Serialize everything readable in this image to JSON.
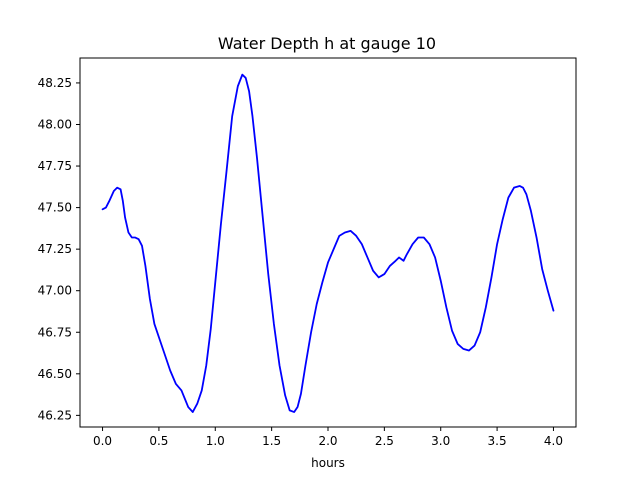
{
  "chart_data": {
    "type": "line",
    "title": "Water Depth h at gauge 10",
    "xlabel": "hours",
    "ylabel": "",
    "xlim": [
      -0.2,
      4.2
    ],
    "ylim": [
      46.18,
      48.4
    ],
    "xticks": [
      0.0,
      0.5,
      1.0,
      1.5,
      2.0,
      2.5,
      3.0,
      3.5,
      4.0
    ],
    "xtick_labels": [
      "0.0",
      "0.5",
      "1.0",
      "1.5",
      "2.0",
      "2.5",
      "3.0",
      "3.5",
      "4.0"
    ],
    "yticks": [
      46.25,
      46.5,
      46.75,
      47.0,
      47.25,
      47.5,
      47.75,
      48.0,
      48.25
    ],
    "ytick_labels": [
      "46.25",
      "46.50",
      "46.75",
      "47.00",
      "47.25",
      "47.50",
      "47.75",
      "48.00",
      "48.25"
    ],
    "grid": false,
    "series": [
      {
        "color": "#0000ff",
        "x": [
          0.0,
          0.03,
          0.06,
          0.1,
          0.13,
          0.16,
          0.18,
          0.2,
          0.23,
          0.26,
          0.29,
          0.32,
          0.35,
          0.38,
          0.42,
          0.46,
          0.5,
          0.55,
          0.6,
          0.65,
          0.7,
          0.73,
          0.76,
          0.8,
          0.84,
          0.88,
          0.92,
          0.96,
          1.0,
          1.05,
          1.1,
          1.15,
          1.2,
          1.24,
          1.27,
          1.3,
          1.33,
          1.37,
          1.42,
          1.47,
          1.52,
          1.57,
          1.62,
          1.66,
          1.7,
          1.73,
          1.76,
          1.8,
          1.85,
          1.9,
          1.95,
          2.0,
          2.05,
          2.1,
          2.15,
          2.2,
          2.25,
          2.3,
          2.35,
          2.4,
          2.45,
          2.5,
          2.55,
          2.6,
          2.63,
          2.67,
          2.7,
          2.75,
          2.8,
          2.85,
          2.9,
          2.95,
          3.0,
          3.05,
          3.1,
          3.15,
          3.2,
          3.25,
          3.3,
          3.35,
          3.4,
          3.45,
          3.5,
          3.55,
          3.6,
          3.65,
          3.7,
          3.73,
          3.76,
          3.8,
          3.85,
          3.9,
          3.95,
          4.0
        ],
        "y": [
          47.49,
          47.5,
          47.54,
          47.6,
          47.62,
          47.61,
          47.54,
          47.44,
          47.35,
          47.32,
          47.32,
          47.31,
          47.27,
          47.15,
          46.95,
          46.8,
          46.72,
          46.62,
          46.52,
          46.44,
          46.4,
          46.35,
          46.3,
          46.27,
          46.32,
          46.4,
          46.55,
          46.77,
          47.05,
          47.4,
          47.72,
          48.05,
          48.23,
          48.3,
          48.28,
          48.2,
          48.05,
          47.8,
          47.45,
          47.1,
          46.8,
          46.55,
          46.37,
          46.28,
          46.27,
          46.3,
          46.38,
          46.55,
          46.75,
          46.92,
          47.05,
          47.17,
          47.25,
          47.33,
          47.35,
          47.36,
          47.33,
          47.28,
          47.2,
          47.12,
          47.08,
          47.1,
          47.15,
          47.18,
          47.2,
          47.18,
          47.22,
          47.28,
          47.32,
          47.32,
          47.28,
          47.2,
          47.06,
          46.9,
          46.76,
          46.68,
          46.65,
          46.64,
          46.67,
          46.75,
          46.9,
          47.08,
          47.28,
          47.43,
          47.56,
          47.62,
          47.63,
          47.62,
          47.58,
          47.48,
          47.32,
          47.13,
          47.0,
          46.88
        ]
      }
    ]
  }
}
